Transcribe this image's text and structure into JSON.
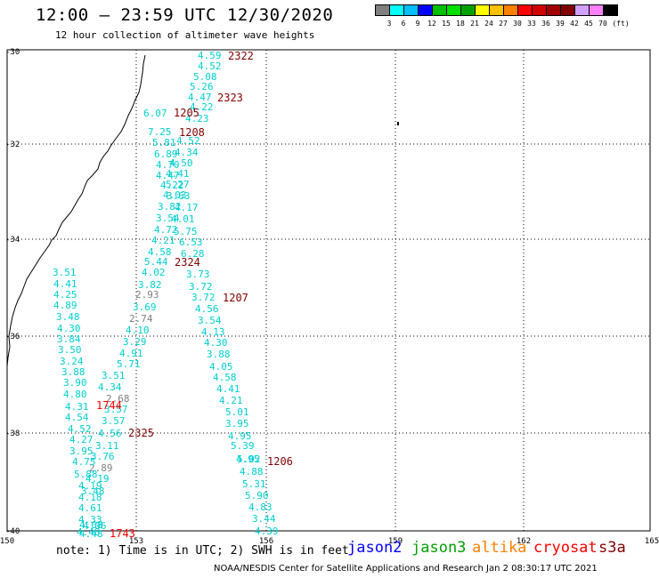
{
  "header": {
    "title": "12:00 – 23:59 UTC 12/30/2020",
    "subtitle": "12 hour collection of altimeter wave heights"
  },
  "scale": {
    "colors": [
      "#808080",
      "#00ffff",
      "#00bfff",
      "#0000ff",
      "#00bf00",
      "#00e000",
      "#00a000",
      "#ffff00",
      "#ffc000",
      "#ff8000",
      "#ff0000",
      "#d00000",
      "#a00000",
      "#800000",
      "#d0a0ff",
      "#ff80ff",
      "#000000"
    ],
    "labels": [
      "3",
      "6",
      "9",
      "12",
      "15",
      "18",
      "21",
      "24",
      "27",
      "30",
      "33",
      "36",
      "39",
      "42",
      "45",
      "70",
      "(ft)"
    ]
  },
  "axes": {
    "lat_labels": [
      "-30",
      "-32",
      "-34",
      "-36",
      "-38",
      "-40"
    ],
    "lon_labels": [
      "150",
      "153",
      "156",
      "159",
      "162",
      "165"
    ]
  },
  "wave_heights": [
    {
      "v": "4.59",
      "c": "#00ced1"
    },
    {
      "v": "4.52",
      "c": "#00ced1"
    },
    {
      "v": "5.08",
      "c": "#00ced1"
    },
    {
      "v": "5.26",
      "c": "#00ced1"
    },
    {
      "v": "4.47",
      "c": "#00ced1"
    },
    {
      "v": "4.22",
      "c": "#00ced1"
    },
    {
      "v": "4.23",
      "c": "#00ced1"
    },
    {
      "v": "6.07",
      "c": "#00ced1"
    },
    {
      "v": "7.25",
      "c": "#00ced1"
    },
    {
      "v": "5.81",
      "c": "#00ced1"
    },
    {
      "v": "4.52",
      "c": "#00ced1"
    },
    {
      "v": "6.89",
      "c": "#00ced1"
    },
    {
      "v": "4.34",
      "c": "#00ced1"
    },
    {
      "v": "4.70",
      "c": "#00ced1"
    },
    {
      "v": "4.50",
      "c": "#00ced1"
    },
    {
      "v": "4.41",
      "c": "#00ced1"
    },
    {
      "v": "4.47",
      "c": "#00ced1"
    },
    {
      "v": "5.27",
      "c": "#00ced1"
    },
    {
      "v": "4.22",
      "c": "#00ced1"
    },
    {
      "v": "4.03",
      "c": "#00ced1"
    },
    {
      "v": "3.63",
      "c": "#00ced1"
    },
    {
      "v": "3.82",
      "c": "#00ced1"
    },
    {
      "v": "4.17",
      "c": "#00ced1"
    },
    {
      "v": "3.54",
      "c": "#00ced1"
    },
    {
      "v": "4.01",
      "c": "#00ced1"
    },
    {
      "v": "4.72",
      "c": "#00ced1"
    },
    {
      "v": "5.75",
      "c": "#00ced1"
    },
    {
      "v": "4.21",
      "c": "#00ced1"
    },
    {
      "v": "6.53",
      "c": "#00ced1"
    },
    {
      "v": "4.58",
      "c": "#00ced1"
    },
    {
      "v": "6.28",
      "c": "#00ced1"
    },
    {
      "v": "5.44",
      "c": "#00ced1"
    },
    {
      "v": "4.02",
      "c": "#00ced1"
    },
    {
      "v": "3.73",
      "c": "#00ced1"
    },
    {
      "v": "3.82",
      "c": "#00ced1"
    },
    {
      "v": "3.72",
      "c": "#00ced1"
    },
    {
      "v": "2.93",
      "c": "#808080"
    },
    {
      "v": "3.72",
      "c": "#00ced1"
    },
    {
      "v": "3.69",
      "c": "#00ced1"
    },
    {
      "v": "4.56",
      "c": "#00ced1"
    },
    {
      "v": "2.74",
      "c": "#808080"
    },
    {
      "v": "3.54",
      "c": "#00ced1"
    },
    {
      "v": "4.10",
      "c": "#00ced1"
    },
    {
      "v": "4.13",
      "c": "#00ced1"
    },
    {
      "v": "3.29",
      "c": "#00ced1"
    },
    {
      "v": "4.30",
      "c": "#00ced1"
    },
    {
      "v": "4.91",
      "c": "#00ced1"
    },
    {
      "v": "3.88",
      "c": "#00ced1"
    },
    {
      "v": "5.71",
      "c": "#00ced1"
    },
    {
      "v": "4.05",
      "c": "#00ced1"
    },
    {
      "v": "3.51",
      "c": "#00ced1"
    },
    {
      "v": "4.58",
      "c": "#00ced1"
    },
    {
      "v": "4.34",
      "c": "#00ced1"
    },
    {
      "v": "4.41",
      "c": "#00ced1"
    },
    {
      "v": "2.68",
      "c": "#808080"
    },
    {
      "v": "4.21",
      "c": "#00ced1"
    },
    {
      "v": "3.57",
      "c": "#00ced1"
    },
    {
      "v": "5.01",
      "c": "#00ced1"
    },
    {
      "v": "3.57",
      "c": "#00ced1"
    },
    {
      "v": "3.95",
      "c": "#00ced1"
    },
    {
      "v": "4.56",
      "c": "#00ced1"
    },
    {
      "v": "4.95",
      "c": "#00ced1"
    },
    {
      "v": "3.11",
      "c": "#00ced1"
    },
    {
      "v": "5.39",
      "c": "#00ced1"
    },
    {
      "v": "3.76",
      "c": "#00ced1"
    },
    {
      "v": "4.95",
      "c": "#00ced1"
    },
    {
      "v": "2.89",
      "c": "#808080"
    },
    {
      "v": "5.02",
      "c": "#00ced1"
    },
    {
      "v": "4.19",
      "c": "#00ced1"
    },
    {
      "v": "4.88",
      "c": "#00ced1"
    },
    {
      "v": "5.31",
      "c": "#00ced1"
    },
    {
      "v": "3.48",
      "c": "#00ced1"
    },
    {
      "v": "5.90",
      "c": "#00ced1"
    },
    {
      "v": "4.83",
      "c": "#00ced1"
    },
    {
      "v": "3.44",
      "c": "#00ced1"
    },
    {
      "v": "4.39",
      "c": "#00ced1"
    },
    {
      "v": "3.51",
      "c": "#00ced1"
    },
    {
      "v": "4.41",
      "c": "#00ced1"
    },
    {
      "v": "4.25",
      "c": "#00ced1"
    },
    {
      "v": "4.89",
      "c": "#00ced1"
    },
    {
      "v": "3.48",
      "c": "#00ced1"
    },
    {
      "v": "4.30",
      "c": "#00ced1"
    },
    {
      "v": "3.84",
      "c": "#00ced1"
    },
    {
      "v": "3.50",
      "c": "#00ced1"
    },
    {
      "v": "3.24",
      "c": "#00ced1"
    },
    {
      "v": "3.88",
      "c": "#00ced1"
    },
    {
      "v": "3.90",
      "c": "#00ced1"
    },
    {
      "v": "4.80",
      "c": "#00ced1"
    },
    {
      "v": "4.31",
      "c": "#00ced1"
    },
    {
      "v": "4.54",
      "c": "#00ced1"
    },
    {
      "v": "4.52",
      "c": "#00ced1"
    },
    {
      "v": "4.27",
      "c": "#00ced1"
    },
    {
      "v": "3.95",
      "c": "#00ced1"
    },
    {
      "v": "4.75",
      "c": "#00ced1"
    },
    {
      "v": "5.88",
      "c": "#00ced1"
    },
    {
      "v": "4.19",
      "c": "#00ced1"
    },
    {
      "v": "4.18",
      "c": "#00ced1"
    },
    {
      "v": "4.61",
      "c": "#00ced1"
    },
    {
      "v": "4.33",
      "c": "#00ced1"
    },
    {
      "v": "4.08",
      "c": "#00ced1"
    },
    {
      "v": "4.06",
      "c": "#00ced1"
    },
    {
      "v": "4.48",
      "c": "#00ced1"
    },
    {
      "v": "4.48",
      "c": "#00ced1"
    }
  ],
  "pass_times": [
    {
      "v": "2322",
      "c": "#800000"
    },
    {
      "v": "2323",
      "c": "#800000"
    },
    {
      "v": "1205",
      "c": "#800000"
    },
    {
      "v": "1208",
      "c": "#800000"
    },
    {
      "v": "2324",
      "c": "#800000"
    },
    {
      "v": "1207",
      "c": "#800000"
    },
    {
      "v": "1744",
      "c": "#ff0000"
    },
    {
      "v": "2325",
      "c": "#800000"
    },
    {
      "v": "1206",
      "c": "#800000"
    },
    {
      "v": "1743",
      "c": "#ff0000"
    }
  ],
  "footer": {
    "note": "note:  1) Time is in UTC; 2) SWH is in feet",
    "credit": "NOAA/NESDIS Center for Satellite Applications and Research    Jan  2 08:30:17 UTC 2021",
    "satellites": [
      {
        "name": "jason2",
        "color": "#0000ff"
      },
      {
        "name": "jason3",
        "color": "#00a000"
      },
      {
        "name": "altika",
        "color": "#ff8000"
      },
      {
        "name": "cryosat",
        "color": "#ff0000"
      },
      {
        "name": "s3a",
        "color": "#800000"
      }
    ]
  }
}
